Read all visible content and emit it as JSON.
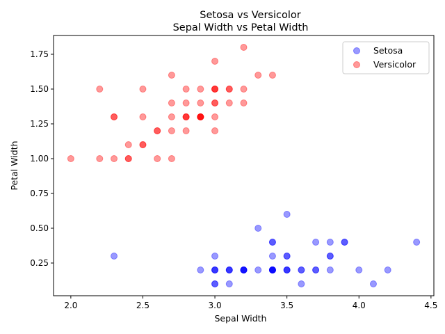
{
  "chart_data": {
    "type": "scatter",
    "title": "Setosa vs Versicolor",
    "subtitle": "Sepal Width vs Petal Width",
    "xlabel": "Sepal Width",
    "ylabel": "Petal Width",
    "xlim": [
      1.88,
      4.52
    ],
    "ylim": [
      0.015,
      1.885
    ],
    "xticks": [
      {
        "value": 2.0,
        "label": "2.0"
      },
      {
        "value": 2.5,
        "label": "2.5"
      },
      {
        "value": 3.0,
        "label": "3.0"
      },
      {
        "value": 3.5,
        "label": "3.5"
      },
      {
        "value": 4.0,
        "label": "4.0"
      },
      {
        "value": 4.5,
        "label": "4.5"
      }
    ],
    "yticks": [
      {
        "value": 0.25,
        "label": "0.25"
      },
      {
        "value": 0.5,
        "label": "0.50"
      },
      {
        "value": 0.75,
        "label": "0.75"
      },
      {
        "value": 1.0,
        "label": "1.00"
      },
      {
        "value": 1.25,
        "label": "1.25"
      },
      {
        "value": 1.5,
        "label": "1.50"
      },
      {
        "value": 1.75,
        "label": "1.75"
      }
    ],
    "grid": false,
    "legend_position": "top-right",
    "series": [
      {
        "name": "Setosa",
        "color": "#0000ff",
        "alpha": 0.4,
        "points": [
          [
            3.5,
            0.2
          ],
          [
            3.0,
            0.2
          ],
          [
            3.2,
            0.2
          ],
          [
            3.1,
            0.2
          ],
          [
            3.6,
            0.2
          ],
          [
            3.9,
            0.4
          ],
          [
            3.4,
            0.3
          ],
          [
            3.4,
            0.2
          ],
          [
            2.9,
            0.2
          ],
          [
            3.1,
            0.1
          ],
          [
            3.7,
            0.2
          ],
          [
            3.4,
            0.2
          ],
          [
            3.0,
            0.1
          ],
          [
            3.0,
            0.1
          ],
          [
            4.0,
            0.2
          ],
          [
            4.4,
            0.4
          ],
          [
            3.9,
            0.4
          ],
          [
            3.5,
            0.3
          ],
          [
            3.8,
            0.3
          ],
          [
            3.8,
            0.3
          ],
          [
            3.4,
            0.2
          ],
          [
            3.7,
            0.4
          ],
          [
            3.6,
            0.2
          ],
          [
            3.3,
            0.5
          ],
          [
            3.4,
            0.2
          ],
          [
            3.0,
            0.2
          ],
          [
            3.4,
            0.4
          ],
          [
            3.5,
            0.2
          ],
          [
            3.4,
            0.2
          ],
          [
            3.2,
            0.2
          ],
          [
            3.1,
            0.2
          ],
          [
            3.4,
            0.4
          ],
          [
            4.1,
            0.1
          ],
          [
            4.2,
            0.2
          ],
          [
            3.1,
            0.2
          ],
          [
            3.2,
            0.2
          ],
          [
            3.5,
            0.2
          ],
          [
            3.6,
            0.1
          ],
          [
            3.0,
            0.2
          ],
          [
            3.4,
            0.2
          ],
          [
            3.5,
            0.3
          ],
          [
            2.3,
            0.3
          ],
          [
            3.2,
            0.2
          ],
          [
            3.5,
            0.6
          ],
          [
            3.8,
            0.4
          ],
          [
            3.0,
            0.3
          ],
          [
            3.8,
            0.2
          ],
          [
            3.2,
            0.2
          ],
          [
            3.7,
            0.2
          ],
          [
            3.3,
            0.2
          ]
        ]
      },
      {
        "name": "Versicolor",
        "color": "#ff0000",
        "alpha": 0.4,
        "points": [
          [
            3.2,
            1.4
          ],
          [
            3.2,
            1.5
          ],
          [
            3.1,
            1.5
          ],
          [
            2.3,
            1.3
          ],
          [
            2.8,
            1.5
          ],
          [
            2.8,
            1.3
          ],
          [
            3.3,
            1.6
          ],
          [
            2.4,
            1.0
          ],
          [
            2.9,
            1.3
          ],
          [
            2.7,
            1.4
          ],
          [
            2.0,
            1.0
          ],
          [
            3.0,
            1.5
          ],
          [
            2.2,
            1.0
          ],
          [
            2.9,
            1.4
          ],
          [
            2.9,
            1.3
          ],
          [
            3.1,
            1.4
          ],
          [
            3.0,
            1.5
          ],
          [
            2.7,
            1.0
          ],
          [
            2.2,
            1.5
          ],
          [
            2.5,
            1.1
          ],
          [
            3.2,
            1.8
          ],
          [
            2.8,
            1.3
          ],
          [
            2.5,
            1.5
          ],
          [
            2.8,
            1.2
          ],
          [
            2.9,
            1.3
          ],
          [
            3.0,
            1.4
          ],
          [
            2.8,
            1.4
          ],
          [
            3.0,
            1.7
          ],
          [
            2.9,
            1.5
          ],
          [
            2.6,
            1.0
          ],
          [
            2.4,
            1.1
          ],
          [
            2.4,
            1.0
          ],
          [
            2.7,
            1.2
          ],
          [
            2.7,
            1.6
          ],
          [
            3.0,
            1.5
          ],
          [
            3.4,
            1.6
          ],
          [
            3.1,
            1.5
          ],
          [
            2.3,
            1.3
          ],
          [
            3.0,
            1.3
          ],
          [
            2.5,
            1.3
          ],
          [
            2.6,
            1.2
          ],
          [
            3.0,
            1.4
          ],
          [
            2.6,
            1.2
          ],
          [
            2.3,
            1.0
          ],
          [
            2.7,
            1.3
          ],
          [
            3.0,
            1.2
          ],
          [
            2.9,
            1.3
          ],
          [
            2.9,
            1.3
          ],
          [
            2.5,
            1.1
          ],
          [
            2.8,
            1.3
          ]
        ]
      }
    ]
  }
}
